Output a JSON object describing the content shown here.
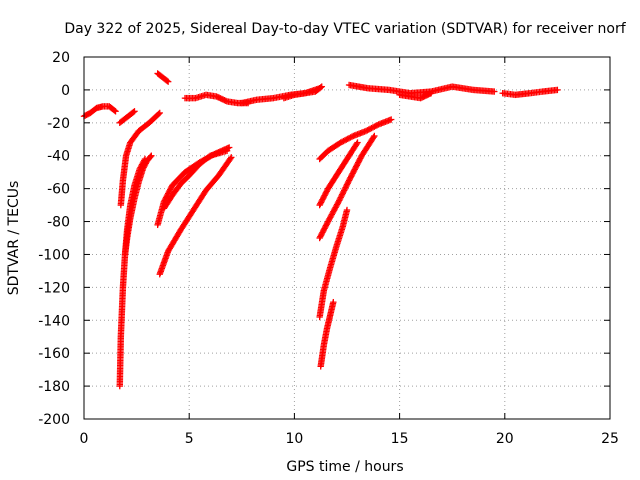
{
  "chart_data": {
    "type": "scatter",
    "title": "Day 322 of 2025, Sidereal Day-to-day VTEC variation (SDTVAR) for receiver norf",
    "xlabel": "GPS time / hours",
    "ylabel": "SDTVAR / TECUs",
    "xlim": [
      0,
      25
    ],
    "ylim": [
      -200,
      20
    ],
    "xticks": [
      0,
      5,
      10,
      15,
      20,
      25
    ],
    "yticks": [
      -200,
      -180,
      -160,
      -140,
      -120,
      -100,
      -80,
      -60,
      -40,
      -20,
      0,
      20
    ],
    "grid": true,
    "marker": "+",
    "color": "#ff0000",
    "series": [
      {
        "name": "s1",
        "x": [
          0.0,
          0.3,
          0.6,
          0.9,
          1.2,
          1.5
        ],
        "y": [
          -16,
          -14,
          -11,
          -10,
          -10,
          -13
        ]
      },
      {
        "name": "s2",
        "x": [
          1.7,
          2.1,
          2.4
        ],
        "y": [
          -20,
          -16,
          -13
        ]
      },
      {
        "name": "s3",
        "x": [
          1.75,
          1.85,
          2.0,
          2.2,
          2.6,
          3.1,
          3.6
        ],
        "y": [
          -70,
          -55,
          -40,
          -32,
          -25,
          -20,
          -14
        ]
      },
      {
        "name": "s4",
        "x": [
          1.7,
          1.75,
          1.85,
          1.95,
          2.05,
          2.2,
          2.4,
          2.65,
          2.9
        ],
        "y": [
          -180,
          -150,
          -120,
          -100,
          -85,
          -70,
          -58,
          -48,
          -42
        ]
      },
      {
        "name": "s5",
        "x": [
          1.95,
          2.05,
          2.2,
          2.4,
          2.6,
          2.8,
          3.0,
          3.2
        ],
        "y": [
          -100,
          -90,
          -78,
          -66,
          -56,
          -48,
          -43,
          -40
        ]
      },
      {
        "name": "s6",
        "x": [
          3.5,
          3.7,
          4.0
        ],
        "y": [
          10,
          8,
          5
        ]
      },
      {
        "name": "s7",
        "x": [
          3.5,
          3.8,
          4.2,
          4.8,
          5.5,
          6.2,
          6.9
        ],
        "y": [
          -82,
          -68,
          -58,
          -50,
          -44,
          -39,
          -35
        ]
      },
      {
        "name": "s8",
        "x": [
          3.8,
          4.2,
          4.6,
          5.0,
          5.5,
          6.0,
          6.8
        ],
        "y": [
          -72,
          -64,
          -57,
          -52,
          -45,
          -40,
          -37
        ]
      },
      {
        "name": "s9",
        "x": [
          3.6,
          4.0,
          4.6,
          5.2,
          5.8,
          6.4,
          7.0
        ],
        "y": [
          -112,
          -98,
          -85,
          -73,
          -61,
          -52,
          -41
        ]
      },
      {
        "name": "s10",
        "x": [
          4.8,
          5.3,
          5.8,
          6.3,
          6.8,
          7.3,
          7.8
        ],
        "y": [
          -5,
          -5,
          -3,
          -4,
          -7,
          -8,
          -8
        ]
      },
      {
        "name": "s11",
        "x": [
          7.5,
          8.2,
          9.0,
          9.8,
          10.5,
          11.2
        ],
        "y": [
          -8,
          -6,
          -5,
          -3,
          -2,
          1
        ]
      },
      {
        "name": "s12",
        "x": [
          9.5,
          10.0,
          10.5,
          11.0,
          11.3
        ],
        "y": [
          -5,
          -3,
          -2,
          -1,
          2
        ]
      },
      {
        "name": "s13",
        "x": [
          11.2,
          11.6,
          12.2,
          12.8,
          13.4,
          14.0,
          14.6
        ],
        "y": [
          -42,
          -37,
          -32,
          -28,
          -25,
          -21,
          -18
        ]
      },
      {
        "name": "s14",
        "x": [
          11.2,
          11.6,
          12.1,
          12.6,
          13.0
        ],
        "y": [
          -70,
          -60,
          -50,
          -40,
          -32
        ]
      },
      {
        "name": "s15",
        "x": [
          11.2,
          11.6,
          12.1,
          12.6,
          13.2,
          13.8
        ],
        "y": [
          -90,
          -80,
          -68,
          -55,
          -40,
          -28
        ]
      },
      {
        "name": "s16",
        "x": [
          11.2,
          11.4,
          11.7,
          12.0,
          12.3,
          12.5
        ],
        "y": [
          -138,
          -122,
          -108,
          -95,
          -83,
          -73
        ]
      },
      {
        "name": "s17",
        "x": [
          11.25,
          11.4,
          11.55,
          11.7,
          11.85
        ],
        "y": [
          -168,
          -155,
          -145,
          -137,
          -129
        ]
      },
      {
        "name": "s18",
        "x": [
          12.6,
          13.5,
          14.5,
          15.5,
          16.5,
          17.5,
          18.5,
          19.5
        ],
        "y": [
          3,
          1,
          0,
          -2,
          -1,
          2,
          0,
          -1
        ]
      },
      {
        "name": "s19",
        "x": [
          15.0,
          16.0,
          16.5
        ],
        "y": [
          -3,
          -5,
          -2
        ]
      },
      {
        "name": "s20",
        "x": [
          19.9,
          20.5,
          21.2,
          21.8,
          22.5
        ],
        "y": [
          -2,
          -3,
          -2,
          -1,
          0
        ]
      }
    ]
  }
}
